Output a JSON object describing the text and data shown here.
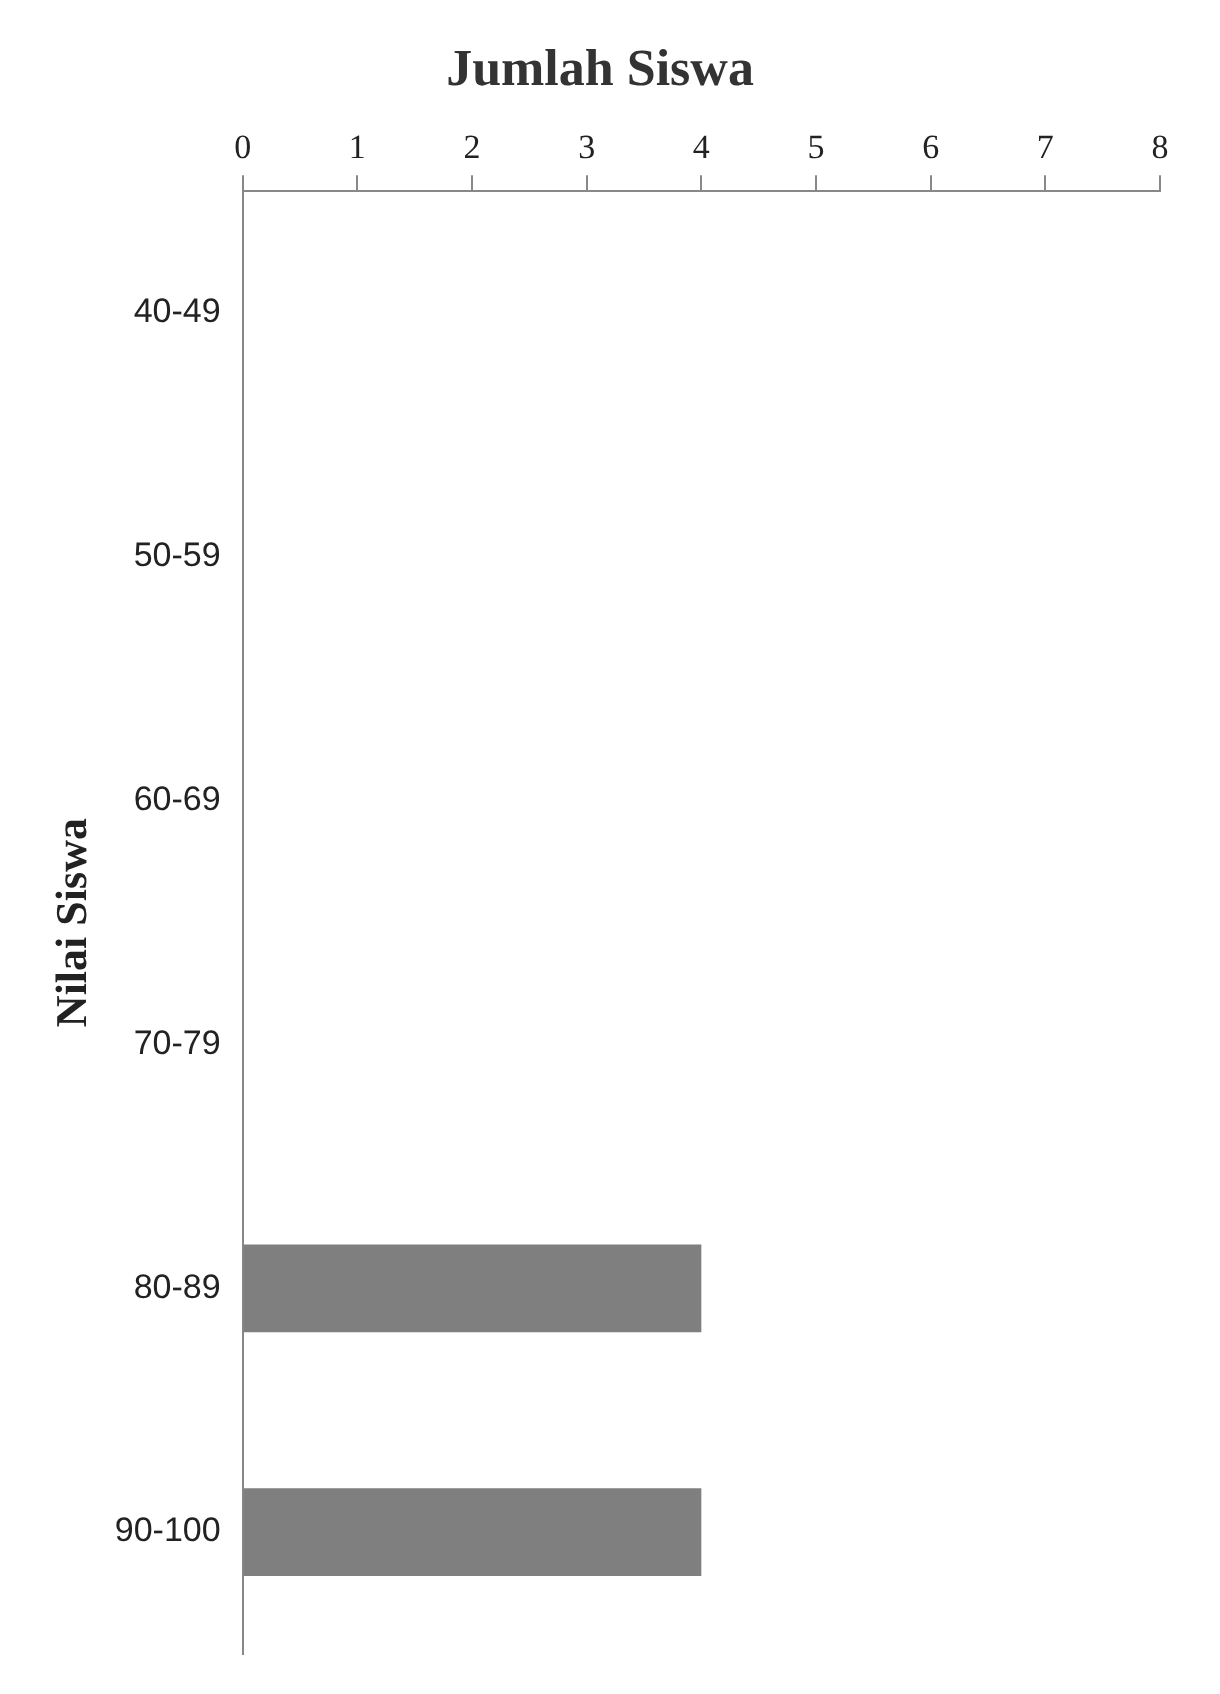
{
  "chart_data": {
    "type": "bar",
    "orientation": "horizontal",
    "title": "Jumlah Siswa",
    "ylabel": "Nilai Siswa",
    "categories": [
      "40-49",
      "50-59",
      "60-69",
      "70-79",
      "80-89",
      "90-100"
    ],
    "values": [
      0,
      0,
      0,
      0,
      4,
      4
    ],
    "color": "#7f7f7f",
    "xlim": [
      0,
      8
    ],
    "xticks": [
      0,
      1,
      2,
      3,
      4,
      5,
      6,
      7,
      8
    ],
    "grid": false,
    "legend": false
  }
}
